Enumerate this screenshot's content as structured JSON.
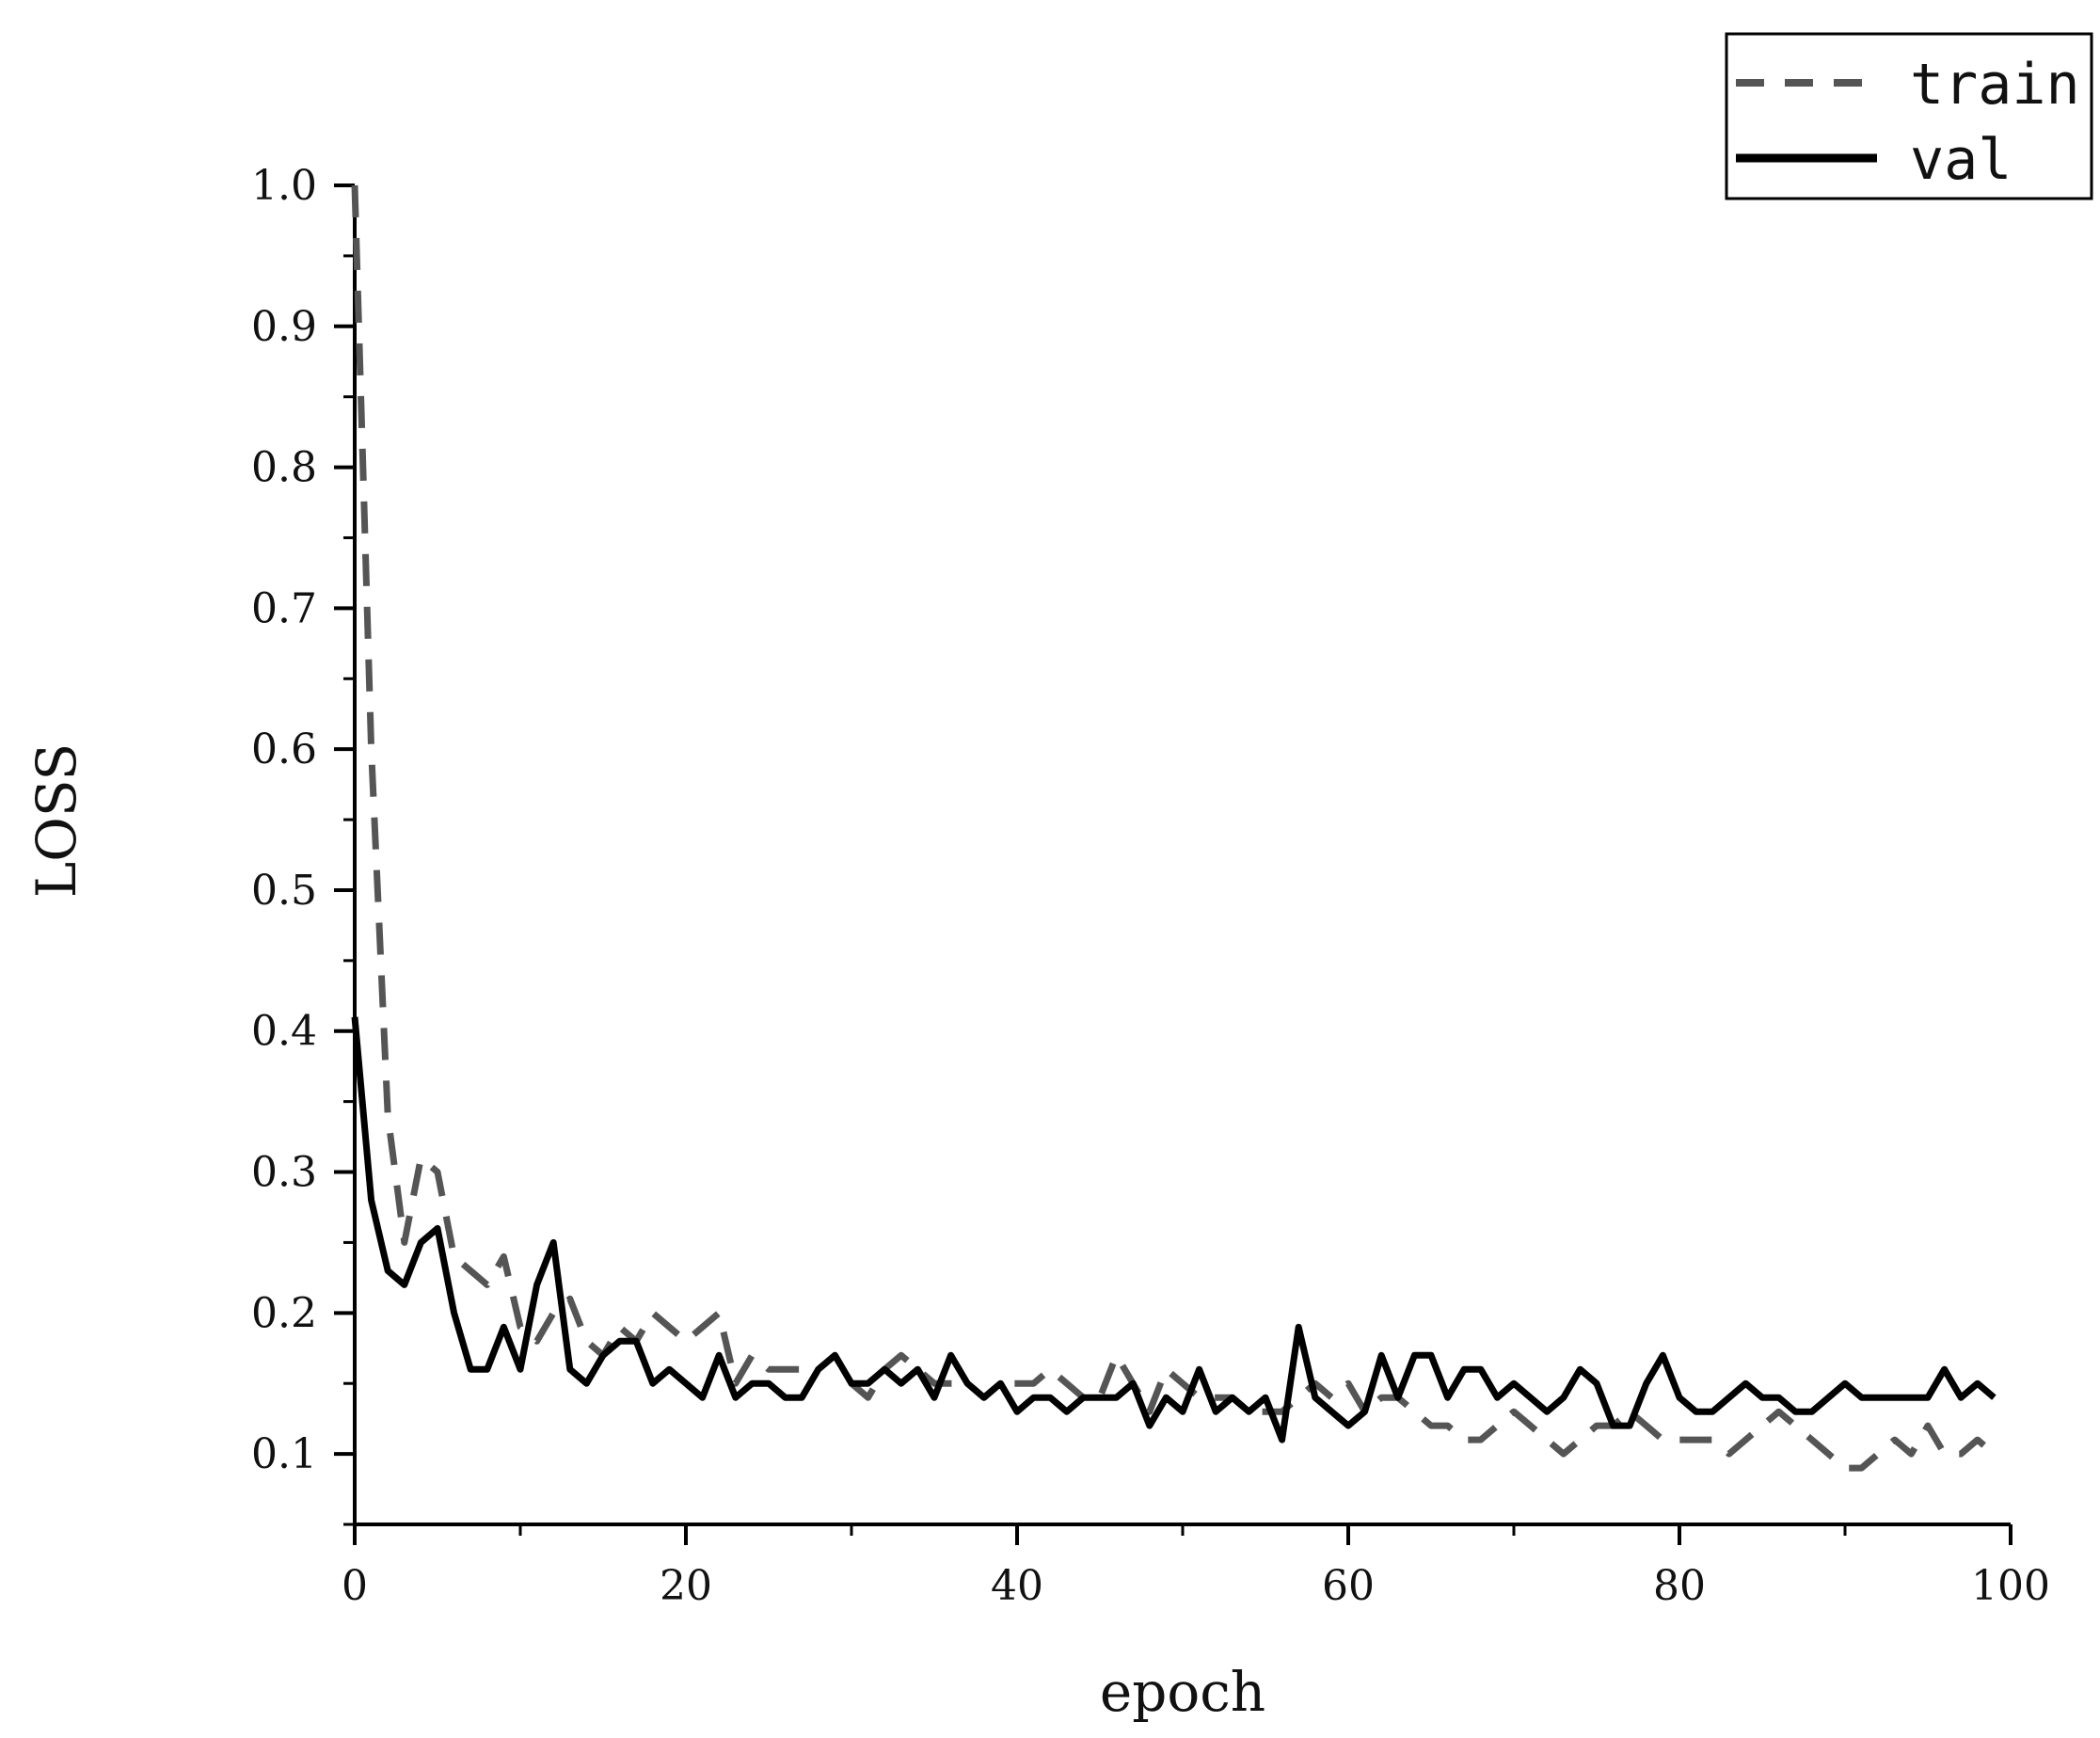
{
  "chart_data": {
    "type": "line",
    "xlabel": "epoch",
    "ylabel": "LOSS",
    "xlim": [
      0,
      100
    ],
    "ylim": [
      0.05,
      1.0
    ],
    "xticks": [
      0,
      20,
      40,
      60,
      80,
      100
    ],
    "xtick_labels": [
      "0",
      "20",
      "40",
      "60",
      "80",
      "100"
    ],
    "yticks": [
      0.1,
      0.2,
      0.3,
      0.4,
      0.5,
      0.6,
      0.7,
      0.8,
      0.9,
      1.0
    ],
    "ytick_labels": [
      "0.1",
      "0.2",
      "0.3",
      "0.4",
      "0.5",
      "0.6",
      "0.7",
      "0.8",
      "0.9",
      "1.0"
    ],
    "grid": false,
    "legend": {
      "position": "top-right"
    },
    "series": [
      {
        "name": "train",
        "style": "dashed",
        "color": "#555555",
        "x": [
          0,
          1,
          2,
          3,
          4,
          5,
          6,
          7,
          8,
          9,
          10,
          11,
          12,
          13,
          14,
          15,
          16,
          17,
          18,
          19,
          20,
          21,
          22,
          23,
          24,
          25,
          26,
          27,
          28,
          29,
          30,
          31,
          32,
          33,
          34,
          35,
          36,
          37,
          38,
          39,
          40,
          41,
          42,
          43,
          44,
          45,
          46,
          47,
          48,
          49,
          50,
          51,
          52,
          53,
          54,
          55,
          56,
          57,
          58,
          59,
          60,
          61,
          62,
          63,
          64,
          65,
          66,
          67,
          68,
          69,
          70,
          71,
          72,
          73,
          74,
          75,
          76,
          77,
          78,
          79,
          80,
          81,
          82,
          83,
          84,
          85,
          86,
          87,
          88,
          89,
          90,
          91,
          92,
          93,
          94,
          95,
          96,
          97,
          98,
          99
        ],
        "values": [
          1.0,
          0.6,
          0.34,
          0.25,
          0.31,
          0.3,
          0.24,
          0.23,
          0.22,
          0.24,
          0.19,
          0.18,
          0.2,
          0.21,
          0.18,
          0.17,
          0.19,
          0.18,
          0.2,
          0.19,
          0.18,
          0.19,
          0.2,
          0.15,
          0.17,
          0.16,
          0.16,
          0.16,
          0.16,
          0.17,
          0.15,
          0.14,
          0.16,
          0.17,
          0.16,
          0.15,
          0.15,
          0.15,
          0.14,
          0.15,
          0.15,
          0.15,
          0.16,
          0.15,
          0.14,
          0.14,
          0.17,
          0.15,
          0.13,
          0.16,
          0.15,
          0.14,
          0.14,
          0.14,
          0.13,
          0.13,
          0.13,
          0.14,
          0.15,
          0.14,
          0.15,
          0.13,
          0.14,
          0.14,
          0.13,
          0.12,
          0.12,
          0.11,
          0.11,
          0.12,
          0.13,
          0.12,
          0.11,
          0.1,
          0.11,
          0.12,
          0.12,
          0.13,
          0.12,
          0.11,
          0.11,
          0.11,
          0.11,
          0.1,
          0.11,
          0.12,
          0.13,
          0.12,
          0.11,
          0.1,
          0.09,
          0.09,
          0.1,
          0.11,
          0.1,
          0.12,
          0.1,
          0.1,
          0.11,
          0.1
        ]
      },
      {
        "name": "val",
        "style": "solid",
        "color": "#000000",
        "x": [
          0,
          1,
          2,
          3,
          4,
          5,
          6,
          7,
          8,
          9,
          10,
          11,
          12,
          13,
          14,
          15,
          16,
          17,
          18,
          19,
          20,
          21,
          22,
          23,
          24,
          25,
          26,
          27,
          28,
          29,
          30,
          31,
          32,
          33,
          34,
          35,
          36,
          37,
          38,
          39,
          40,
          41,
          42,
          43,
          44,
          45,
          46,
          47,
          48,
          49,
          50,
          51,
          52,
          53,
          54,
          55,
          56,
          57,
          58,
          59,
          60,
          61,
          62,
          63,
          64,
          65,
          66,
          67,
          68,
          69,
          70,
          71,
          72,
          73,
          74,
          75,
          76,
          77,
          78,
          79,
          80,
          81,
          82,
          83,
          84,
          85,
          86,
          87,
          88,
          89,
          90,
          91,
          92,
          93,
          94,
          95,
          96,
          97,
          98,
          99
        ],
        "values": [
          0.41,
          0.28,
          0.23,
          0.22,
          0.25,
          0.26,
          0.2,
          0.16,
          0.16,
          0.19,
          0.16,
          0.22,
          0.25,
          0.16,
          0.15,
          0.17,
          0.18,
          0.18,
          0.15,
          0.16,
          0.15,
          0.14,
          0.17,
          0.14,
          0.15,
          0.15,
          0.14,
          0.14,
          0.16,
          0.17,
          0.15,
          0.15,
          0.16,
          0.15,
          0.16,
          0.14,
          0.17,
          0.15,
          0.14,
          0.15,
          0.13,
          0.14,
          0.14,
          0.13,
          0.14,
          0.14,
          0.14,
          0.15,
          0.12,
          0.14,
          0.13,
          0.16,
          0.13,
          0.14,
          0.13,
          0.14,
          0.11,
          0.19,
          0.14,
          0.13,
          0.12,
          0.13,
          0.17,
          0.14,
          0.17,
          0.17,
          0.14,
          0.16,
          0.16,
          0.14,
          0.15,
          0.14,
          0.13,
          0.14,
          0.16,
          0.15,
          0.12,
          0.12,
          0.15,
          0.17,
          0.14,
          0.13,
          0.13,
          0.14,
          0.15,
          0.14,
          0.14,
          0.13,
          0.13,
          0.14,
          0.15,
          0.14,
          0.14,
          0.14,
          0.14,
          0.14,
          0.16,
          0.14,
          0.15,
          0.14
        ]
      }
    ]
  }
}
